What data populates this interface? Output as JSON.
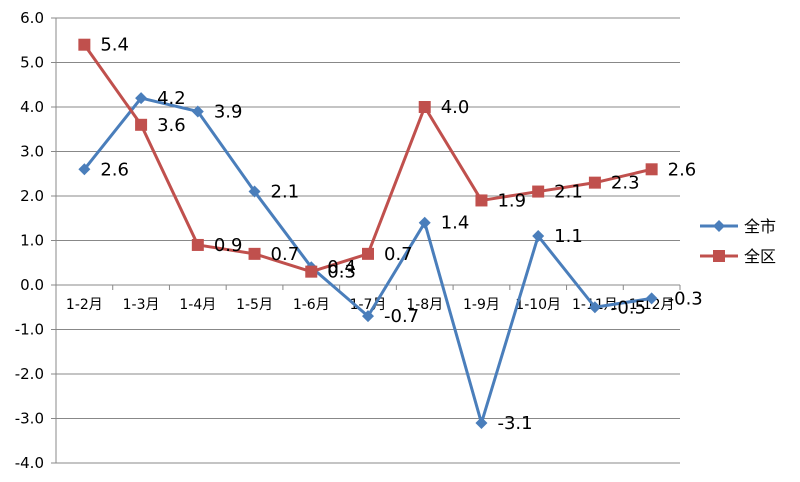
{
  "chart_data": {
    "type": "line",
    "categories": [
      "1-2月",
      "1-3月",
      "1-4月",
      "1-5月",
      "1-6月",
      "1-7月",
      "1-8月",
      "1-9月",
      "1-10月",
      "1-11月",
      "1-12月"
    ],
    "series": [
      {
        "name": "全市",
        "color": "#4a7ebb",
        "marker": "diamond",
        "values": [
          2.6,
          4.2,
          3.9,
          2.1,
          0.4,
          -0.7,
          1.4,
          -3.1,
          1.1,
          -0.5,
          -0.3
        ],
        "labels": [
          "2.6",
          "4.2",
          "3.9",
          "2.1",
          "0.4",
          "-0.7",
          "1.4",
          "-3.1",
          "1.1",
          "-0.5",
          "-0.3"
        ]
      },
      {
        "name": "全区",
        "color": "#c0504d",
        "marker": "square",
        "values": [
          5.4,
          3.6,
          0.9,
          0.7,
          0.3,
          0.7,
          4.0,
          1.9,
          2.1,
          2.3,
          2.6
        ],
        "labels": [
          "5.4",
          "3.6",
          "0.9",
          "0.7",
          "0.3",
          "0.7",
          "4.0",
          "1.9",
          "2.1",
          "2.3",
          "2.6"
        ]
      }
    ],
    "yticks": [
      "6.0",
      "5.0",
      "4.0",
      "3.0",
      "2.0",
      "1.0",
      "0.0",
      "-1.0",
      "-2.0",
      "-3.0",
      "-4.0"
    ],
    "ylim": [
      -4.0,
      6.0
    ],
    "title": "",
    "xlabel": "",
    "ylabel": "",
    "grid": true,
    "legend": "right"
  }
}
